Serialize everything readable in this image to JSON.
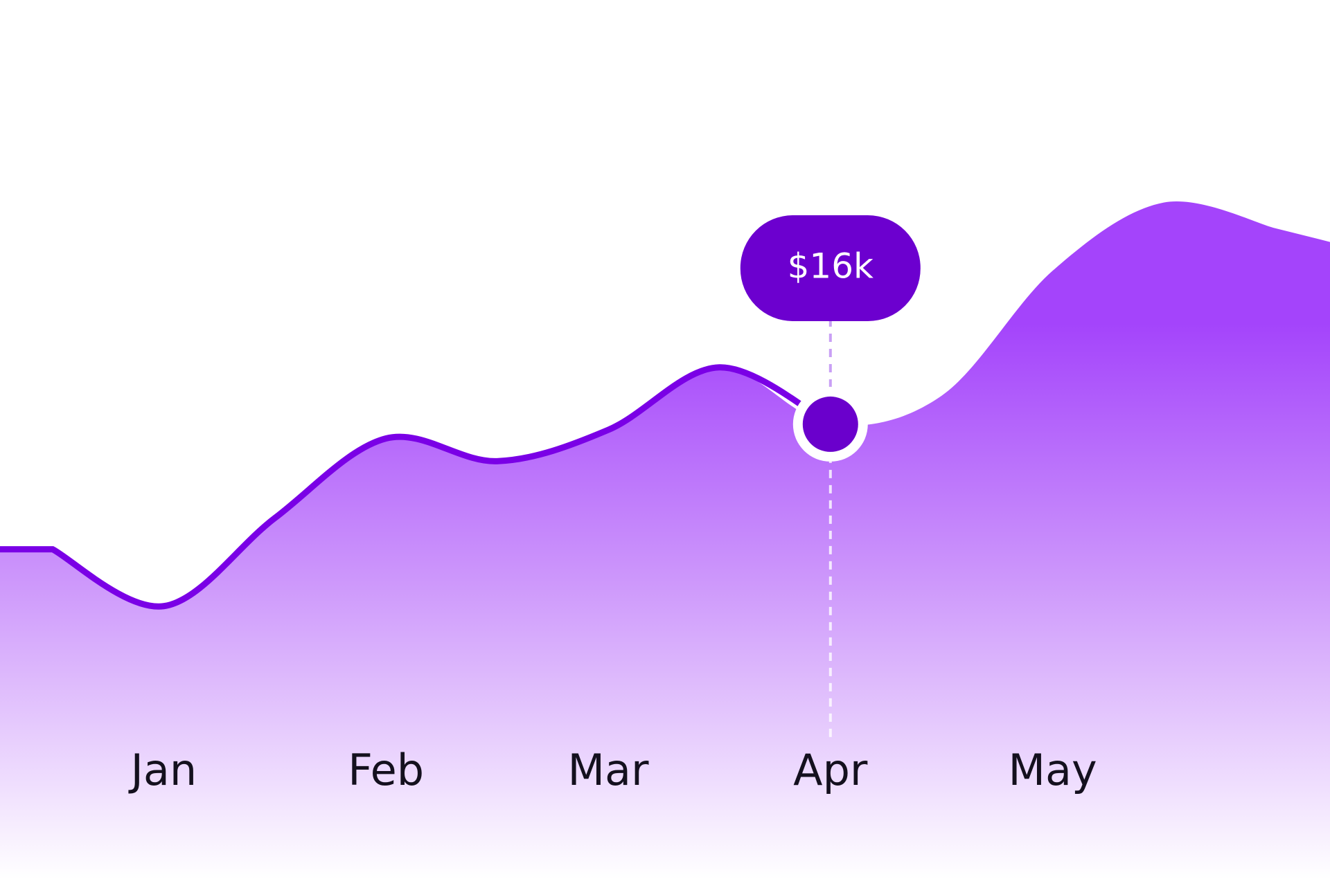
{
  "chart_data": {
    "type": "area",
    "categories": [
      null,
      "Jan",
      null,
      "Feb",
      null,
      "Mar",
      null,
      "Apr",
      null,
      "May",
      null,
      null
    ],
    "series": [
      {
        "color": "#7a00e6",
        "values": [
          11.6,
          9.6,
          12.7,
          15.5,
          14.7,
          15.8,
          18.0,
          16,
          17.0,
          21.4,
          23.8,
          22.9
        ]
      }
    ],
    "value_labels": [
      null,
      null,
      null,
      null,
      null,
      null,
      null,
      "$16k",
      null,
      null,
      null,
      null
    ],
    "ylim": [
      0,
      30
    ]
  }
}
